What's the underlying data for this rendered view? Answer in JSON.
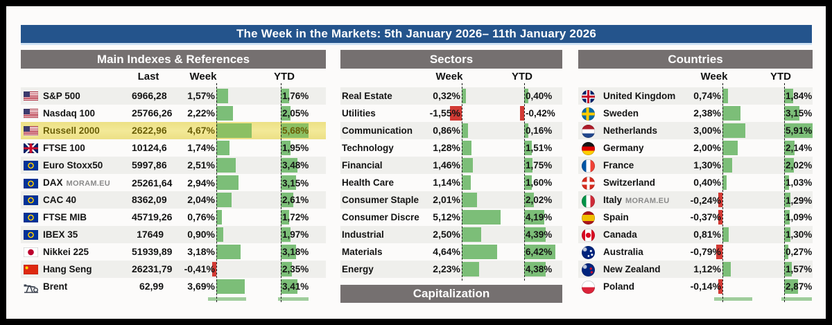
{
  "title": "The Week in the Markets: 5th January 2026– 11th January 2026",
  "watermark": "MORAM.EU",
  "colors": {
    "title_bar": "#24548C",
    "section_header": "#757070",
    "positive_bar": "#7cbe78",
    "negative_bar": "#d23a34",
    "highlight_row": "#f0e690"
  },
  "sections": {
    "indexes": {
      "header": "Main Indexes & References",
      "columns": {
        "last": "Last",
        "week": "Week",
        "ytd": "YTD"
      },
      "rows": [
        {
          "flag": "us",
          "name": "S&P 500",
          "last": "6966,28",
          "week": "1,57%",
          "week_val": 1.57,
          "ytd": "1,76%",
          "ytd_val": 1.76,
          "highlight": false,
          "watermark": false
        },
        {
          "flag": "us",
          "name": "Nasdaq 100",
          "last": "25766,26",
          "week": "2,22%",
          "week_val": 2.22,
          "ytd": "2,05%",
          "ytd_val": 2.05,
          "highlight": false,
          "watermark": false
        },
        {
          "flag": "us",
          "name": "Russell 2000",
          "last": "2622,96",
          "week": "4,67%",
          "week_val": 4.67,
          "ytd": "5,68%",
          "ytd_val": 5.68,
          "highlight": true,
          "watermark": false
        },
        {
          "flag": "uk",
          "name": "FTSE 100",
          "last": "10124,6",
          "week": "1,74%",
          "week_val": 1.74,
          "ytd": "1,95%",
          "ytd_val": 1.95,
          "highlight": false,
          "watermark": false
        },
        {
          "flag": "eu",
          "name": "Euro Stoxx50",
          "last": "5997,86",
          "week": "2,51%",
          "week_val": 2.51,
          "ytd": "3,48%",
          "ytd_val": 3.48,
          "highlight": false,
          "watermark": false
        },
        {
          "flag": "eu",
          "name": "DAX",
          "last": "25261,64",
          "week": "2,94%",
          "week_val": 2.94,
          "ytd": "3,15%",
          "ytd_val": 3.15,
          "highlight": false,
          "watermark": true
        },
        {
          "flag": "eu",
          "name": "CAC 40",
          "last": "8362,09",
          "week": "2,04%",
          "week_val": 2.04,
          "ytd": "2,61%",
          "ytd_val": 2.61,
          "highlight": false,
          "watermark": false
        },
        {
          "flag": "eu",
          "name": "FTSE MIB",
          "last": "45719,26",
          "week": "0,76%",
          "week_val": 0.76,
          "ytd": "1,72%",
          "ytd_val": 1.72,
          "highlight": false,
          "watermark": false
        },
        {
          "flag": "eu",
          "name": "IBEX 35",
          "last": "17649",
          "week": "0,90%",
          "week_val": 0.9,
          "ytd": "1,97%",
          "ytd_val": 1.97,
          "highlight": false,
          "watermark": false
        },
        {
          "flag": "jp",
          "name": "Nikkei 225",
          "last": "51939,89",
          "week": "3,18%",
          "week_val": 3.18,
          "ytd": "3,18%",
          "ytd_val": 3.18,
          "highlight": false,
          "watermark": false
        },
        {
          "flag": "cn",
          "name": "Hang Seng",
          "last": "26231,79",
          "week": "-0,41%",
          "week_val": -0.41,
          "ytd": "2,35%",
          "ytd_val": 2.35,
          "highlight": false,
          "watermark": false
        },
        {
          "flag": "brent",
          "name": "Brent",
          "last": "62,99",
          "week": "3,69%",
          "week_val": 3.69,
          "ytd": "3,41%",
          "ytd_val": 3.41,
          "highlight": false,
          "watermark": false
        }
      ]
    },
    "sectors": {
      "header": "Sectors",
      "columns": {
        "week": "Week",
        "ytd": "YTD"
      },
      "footer": "Capitalization",
      "rows": [
        {
          "name": "Real Estate",
          "week": "0,32%",
          "week_val": 0.32,
          "ytd": "0,40%",
          "ytd_val": 0.4
        },
        {
          "name": "Utilities",
          "week": "-1,55%",
          "week_val": -1.55,
          "ytd": "-0,42%",
          "ytd_val": -0.42
        },
        {
          "name": "Communication",
          "week": "0,86%",
          "week_val": 0.86,
          "ytd": "0,16%",
          "ytd_val": 0.16
        },
        {
          "name": "Technology",
          "week": "1,28%",
          "week_val": 1.28,
          "ytd": "1,51%",
          "ytd_val": 1.51
        },
        {
          "name": "Financial",
          "week": "1,46%",
          "week_val": 1.46,
          "ytd": "1,75%",
          "ytd_val": 1.75
        },
        {
          "name": "Health Care",
          "week": "1,14%",
          "week_val": 1.14,
          "ytd": "1,60%",
          "ytd_val": 1.6
        },
        {
          "name": "Consumer Staple",
          "week": "2,01%",
          "week_val": 2.01,
          "ytd": "2,02%",
          "ytd_val": 2.02
        },
        {
          "name": "Consumer Discre",
          "week": "5,12%",
          "week_val": 5.12,
          "ytd": "4,19%",
          "ytd_val": 4.19
        },
        {
          "name": "Industrial",
          "week": "2,50%",
          "week_val": 2.5,
          "ytd": "4,39%",
          "ytd_val": 4.39
        },
        {
          "name": "Materials",
          "week": "4,64%",
          "week_val": 4.64,
          "ytd": "6,42%",
          "ytd_val": 6.42
        },
        {
          "name": "Energy",
          "week": "2,23%",
          "week_val": 2.23,
          "ytd": "4,38%",
          "ytd_val": 4.38
        }
      ]
    },
    "countries": {
      "header": "Countries",
      "columns": {
        "week": "Week",
        "ytd": "YTD"
      },
      "rows": [
        {
          "flag": "gb",
          "name": "United Kingdom",
          "week": "0,74%",
          "week_val": 0.74,
          "ytd": "1,84%",
          "ytd_val": 1.84,
          "watermark": false
        },
        {
          "flag": "se",
          "name": "Sweden",
          "week": "2,38%",
          "week_val": 2.38,
          "ytd": "3,15%",
          "ytd_val": 3.15,
          "watermark": false
        },
        {
          "flag": "nl",
          "name": "Netherlands",
          "week": "3,00%",
          "week_val": 3.0,
          "ytd": "5,91%",
          "ytd_val": 5.91,
          "watermark": false
        },
        {
          "flag": "de",
          "name": "Germany",
          "week": "2,00%",
          "week_val": 2.0,
          "ytd": "2,14%",
          "ytd_val": 2.14,
          "watermark": false
        },
        {
          "flag": "fr",
          "name": "France",
          "week": "1,30%",
          "week_val": 1.3,
          "ytd": "2,02%",
          "ytd_val": 2.02,
          "watermark": false
        },
        {
          "flag": "ch",
          "name": "Switzerland",
          "week": "0,40%",
          "week_val": 0.4,
          "ytd": "1,03%",
          "ytd_val": 1.03,
          "watermark": false
        },
        {
          "flag": "it",
          "name": "Italy",
          "week": "-0,24%",
          "week_val": -0.24,
          "ytd": "1,29%",
          "ytd_val": 1.29,
          "watermark": true
        },
        {
          "flag": "es",
          "name": "Spain",
          "week": "-0,37%",
          "week_val": -0.37,
          "ytd": "1,09%",
          "ytd_val": 1.09,
          "watermark": false
        },
        {
          "flag": "ca",
          "name": "Canada",
          "week": "0,81%",
          "week_val": 0.81,
          "ytd": "1,30%",
          "ytd_val": 1.3,
          "watermark": false
        },
        {
          "flag": "au",
          "name": "Australia",
          "week": "-0,79%",
          "week_val": -0.79,
          "ytd": "0,27%",
          "ytd_val": 0.27,
          "watermark": false
        },
        {
          "flag": "nz",
          "name": "New Zealand",
          "week": "1,12%",
          "week_val": 1.12,
          "ytd": "1,57%",
          "ytd_val": 1.57,
          "watermark": false
        },
        {
          "flag": "pl",
          "name": "Poland",
          "week": "-0,14%",
          "week_val": -0.14,
          "ytd": "2,87%",
          "ytd_val": 2.87,
          "watermark": false
        }
      ]
    }
  }
}
